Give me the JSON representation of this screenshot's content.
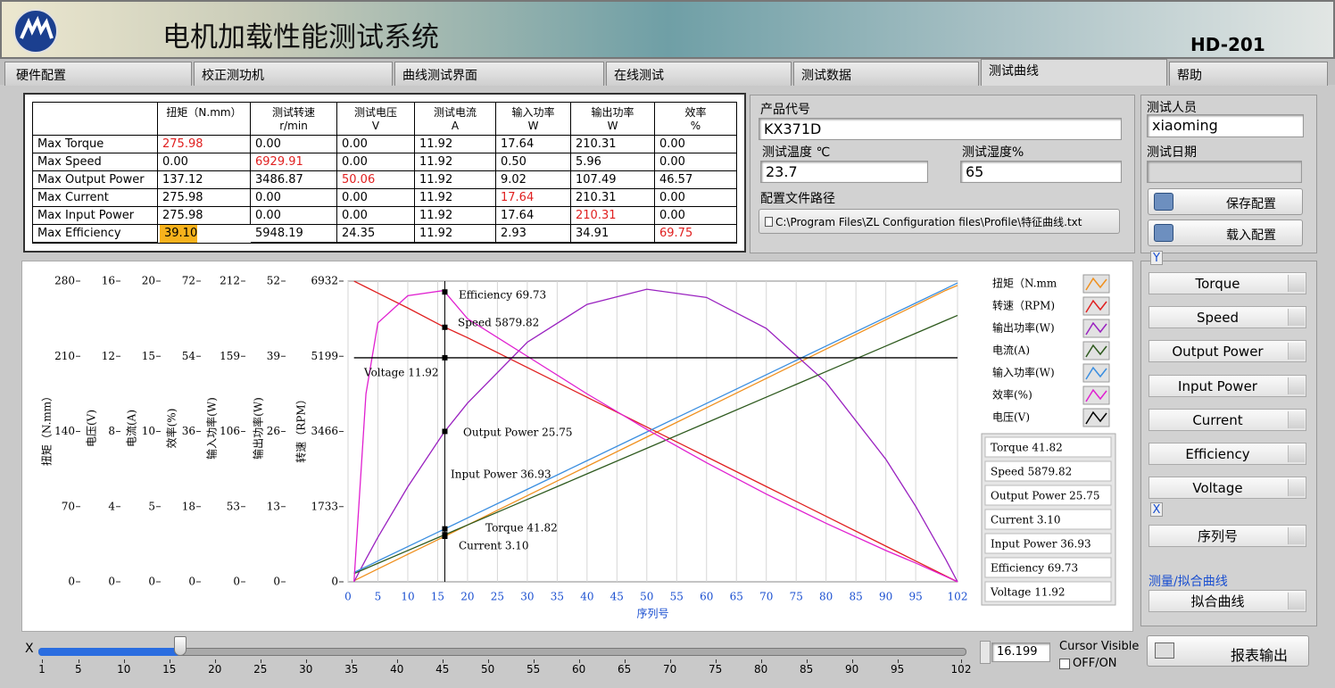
{
  "header": {
    "title": "电机加载性能测试系统",
    "model": "HD-201"
  },
  "tabs": [
    "硬件配置",
    "校正测功机",
    "曲线测试界面",
    "在线测试",
    "测试数据",
    "测试曲线",
    "帮助"
  ],
  "table": {
    "columns": [
      [
        "扭矩（N.mm）"
      ],
      [
        "测试转速",
        "r/min"
      ],
      [
        "测试电压",
        "V"
      ],
      [
        "测试电流",
        "A"
      ],
      [
        "输入功率",
        "W"
      ],
      [
        "输出功率",
        "W"
      ],
      [
        "效率",
        "%"
      ]
    ],
    "rows": [
      {
        "label": "Max Torque",
        "values": [
          "275.98",
          "0.00",
          "0.00",
          "11.92",
          "17.64",
          "210.31",
          "0.00"
        ]
      },
      {
        "label": "Max Speed",
        "values": [
          "0.00",
          "6929.91",
          "0.00",
          "11.92",
          "0.50",
          "5.96",
          "0.00"
        ]
      },
      {
        "label": "Max Output Power",
        "values": [
          "137.12",
          "3486.87",
          "50.06",
          "11.92",
          "9.02",
          "107.49",
          "46.57"
        ]
      },
      {
        "label": "Max Current",
        "values": [
          "275.98",
          "0.00",
          "0.00",
          "11.92",
          "17.64",
          "210.31",
          "0.00"
        ]
      },
      {
        "label": "Max Input Power",
        "values": [
          "275.98",
          "0.00",
          "0.00",
          "11.92",
          "17.64",
          "210.31",
          "0.00"
        ]
      },
      {
        "label": "Max Efficiency",
        "values": [
          "39.10",
          "5948.19",
          "24.35",
          "11.92",
          "2.93",
          "34.91",
          "69.75"
        ]
      }
    ]
  },
  "form": {
    "product_code_label": "产品代号",
    "product_code": "KX371D",
    "temp_label": "测试温度 ℃",
    "temp": "23.7",
    "humidity_label": "测试湿度%",
    "humidity": "65",
    "config_path_label": "配置文件路径",
    "config_path": "C:\\Program Files\\ZL Configuration files\\Profile\\特征曲线.txt",
    "tester_label": "测试人员",
    "tester": "xiaoming",
    "date_label": "测试日期",
    "save": "保存配置",
    "load": "载入配置"
  },
  "chart": {
    "type": "line",
    "x_title": "序列号",
    "xlim": [
      0,
      102
    ],
    "xticks": [
      0,
      5,
      10,
      15,
      20,
      25,
      30,
      35,
      40,
      45,
      50,
      55,
      60,
      65,
      70,
      75,
      80,
      85,
      90,
      95,
      102
    ],
    "grid": true,
    "x": [
      1,
      3,
      5,
      10,
      16,
      20,
      30,
      40,
      50,
      60,
      70,
      80,
      90,
      95,
      100,
      102
    ],
    "series": [
      {
        "name": "扭矩（N.mm",
        "axis_title": "扭矩（N.mm）",
        "color": "#f0901e",
        "ylim": [
          0,
          280
        ],
        "yticks": [
          0,
          70,
          140,
          210,
          280
        ],
        "values": [
          1,
          6.5,
          12,
          25.6,
          41.82,
          52.9,
          80.2,
          107.5,
          134.8,
          162.1,
          189.4,
          216.7,
          244,
          257.6,
          271.3,
          276
        ]
      },
      {
        "name": "转速（RPM)",
        "axis_title": "转速（RPM）",
        "color": "#e02020",
        "ylim": [
          0,
          6932
        ],
        "yticks": [
          0,
          1733,
          3466,
          5199,
          6932
        ],
        "values": [
          6930,
          6793,
          6656,
          6312,
          5879.82,
          5627,
          4940,
          4254,
          3568,
          2882,
          2196,
          1510,
          823,
          480,
          137,
          0
        ]
      },
      {
        "name": "输出功率(W)",
        "axis_title": "输出功率(W)",
        "color": "#9a22c0",
        "ylim": [
          0,
          52
        ],
        "yticks": [
          0,
          13,
          26,
          39,
          52
        ],
        "values": [
          0,
          3.93,
          7.7,
          16.43,
          25.75,
          30.91,
          41.43,
          47.97,
          50.59,
          49.17,
          43.81,
          34.48,
          21.19,
          13.06,
          3.93,
          0
        ]
      },
      {
        "name": "电流(A)",
        "axis_title": "电流(A)",
        "color": "#2e5a1e",
        "ylim": [
          0,
          20
        ],
        "yticks": [
          0,
          5,
          10,
          15,
          20
        ],
        "values": [
          0.55,
          0.89,
          1.23,
          2.08,
          3.1,
          3.78,
          5.48,
          7.18,
          8.88,
          10.58,
          12.28,
          13.98,
          15.68,
          16.53,
          17.38,
          17.72
        ]
      },
      {
        "name": "输入功率(W)",
        "axis_title": "输入功率(W)",
        "color": "#3a8ee0",
        "ylim": [
          0,
          212
        ],
        "yticks": [
          0,
          53,
          106,
          159,
          212
        ],
        "values": [
          6.6,
          10.6,
          14.7,
          24.8,
          36.93,
          45,
          65.2,
          85.4,
          105.6,
          125.8,
          146,
          166.2,
          186.4,
          196.5,
          206.6,
          210.7
        ]
      },
      {
        "name": "效率(%)",
        "axis_title": "效率(%)",
        "color": "#e020d0",
        "ylim": [
          0,
          72
        ],
        "yticks": [
          0,
          18,
          36,
          54,
          72
        ],
        "values": [
          0,
          45,
          62,
          68.5,
          69.73,
          63,
          54,
          45,
          36.5,
          28.5,
          21,
          14,
          7.5,
          4.5,
          1.3,
          0
        ]
      },
      {
        "name": "电压(V)",
        "axis_title": "电压(V)",
        "color": "#000000",
        "ylim": [
          0,
          16
        ],
        "yticks": [
          0,
          4,
          8,
          12,
          16
        ],
        "values": [
          11.92,
          11.92,
          11.92,
          11.92,
          11.92,
          11.92,
          11.92,
          11.92,
          11.92,
          11.92,
          11.92,
          11.92,
          11.92,
          11.92,
          11.92,
          11.92
        ]
      }
    ],
    "readouts": [
      "Torque 41.82",
      "Speed 5879.82",
      "Output Power 25.75",
      "Current 3.10",
      "Input Power 36.93",
      "Efficiency 69.73",
      "Voltage 11.92"
    ]
  },
  "controls": {
    "y_label": "Y",
    "y_options": [
      "Torque",
      "Speed",
      "Output Power",
      "Input Power",
      "Current",
      "Efficiency",
      "Voltage"
    ],
    "x_label": "X",
    "x_option": "序列号",
    "mode_label": "测量/拟合曲线",
    "mode": "拟合曲线",
    "report": "报表输出"
  },
  "slider": {
    "label": "X",
    "range": [
      1,
      102
    ],
    "ticks": [
      1,
      5,
      10,
      15,
      20,
      25,
      30,
      35,
      40,
      45,
      50,
      55,
      60,
      65,
      70,
      75,
      80,
      85,
      90,
      95,
      102
    ],
    "value": 16.199,
    "cursor_visible": "Cursor Visible",
    "on_off": "OFF/ON"
  }
}
